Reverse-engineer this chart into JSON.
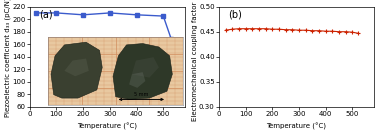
{
  "panel_a": {
    "label": "(a)",
    "xlabel": "Temperature (°C)",
    "ylabel": "Piezoelectric coefficient d₃₃ (pC/N)",
    "xlim": [
      0,
      580
    ],
    "ylim": [
      60,
      220
    ],
    "yticks": [
      60,
      80,
      100,
      120,
      140,
      160,
      180,
      200,
      220
    ],
    "xticks": [
      0,
      100,
      200,
      300,
      400,
      500
    ],
    "line_color": "#3b5bcc",
    "x_data": [
      25,
      100,
      200,
      300,
      400,
      500,
      530
    ],
    "y_data": [
      210,
      210,
      207,
      210,
      207,
      205,
      168
    ],
    "marker": "s",
    "markersize": 2.5,
    "linewidth": 1.0
  },
  "panel_b": {
    "label": "(b)",
    "xlabel": "Temperature (°C)",
    "ylabel": "Electromechanical coupling factor kₜ",
    "xlim": [
      0,
      580
    ],
    "ylim": [
      0.3,
      0.5
    ],
    "yticks": [
      0.3,
      0.35,
      0.4,
      0.45,
      0.5
    ],
    "xticks": [
      0,
      100,
      200,
      300,
      400,
      500
    ],
    "line_color": "#cc2200",
    "x_data": [
      25,
      50,
      75,
      100,
      125,
      150,
      175,
      200,
      225,
      250,
      275,
      300,
      325,
      350,
      375,
      400,
      425,
      450,
      475,
      500,
      520
    ],
    "y_data": [
      0.453,
      0.455,
      0.456,
      0.456,
      0.456,
      0.456,
      0.456,
      0.455,
      0.455,
      0.454,
      0.454,
      0.453,
      0.453,
      0.452,
      0.452,
      0.451,
      0.451,
      0.45,
      0.45,
      0.449,
      0.447
    ],
    "marker": "+",
    "markersize": 3.5,
    "linewidth": 0.8
  },
  "bg_color": "#ffffff",
  "tick_fontsize": 5,
  "label_fontsize": 7,
  "axis_label_fontsize": 5,
  "inset": {
    "grid_bg": "#e8c8a0",
    "grid_color": "#d08858",
    "crystal1_color": "#3a4030",
    "crystal2_color": "#2e3828",
    "scalebar_color": "#111111"
  }
}
